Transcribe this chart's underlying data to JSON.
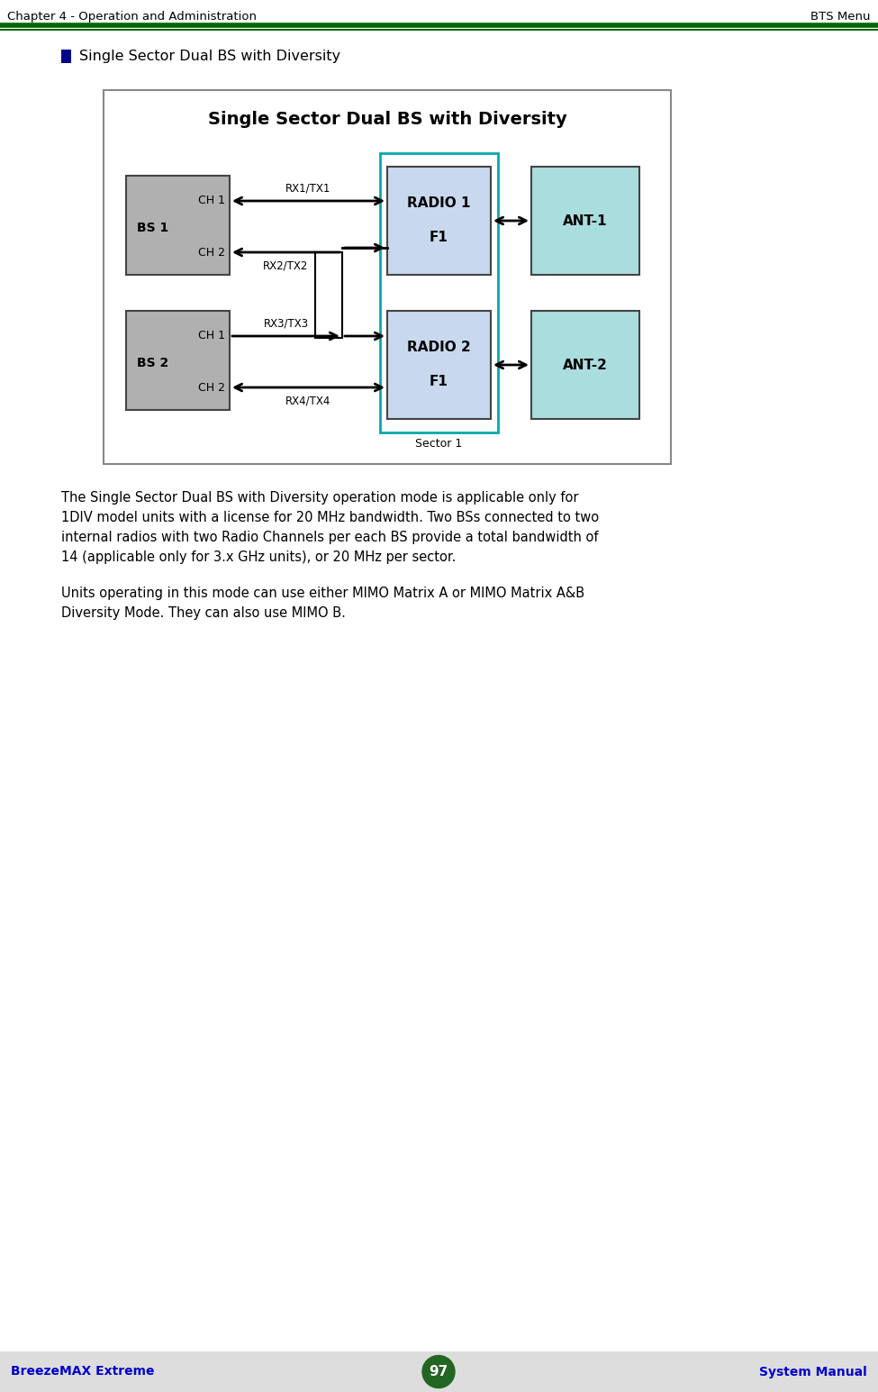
{
  "page_title_left": "Chapter 4 - Operation and Administration",
  "page_title_right": "BTS Menu",
  "header_line_color1": "#007700",
  "header_line_color2": "#009900",
  "bullet_text": "Single Sector Dual BS with Diversity",
  "bullet_color": "#00008B",
  "diagram_title": "Single Sector Dual BS with Diversity",
  "diagram_bg": "#ffffff",
  "diagram_border": "#aaaaaa",
  "box_bs_color": "#b0b0b0",
  "box_radio_color": "#c8d8ee",
  "box_ant_color": "#aadddd",
  "box_sector_outline": "#00aaaa",
  "para1_lines": [
    "The Single Sector Dual BS with Diversity operation mode is applicable only for",
    "1DIV model units with a license for 20 MHz bandwidth. Two BSs connected to two",
    "internal radios with two Radio Channels per each BS provide a total bandwidth of",
    "14 (applicable only for 3.x GHz units), or 20 MHz per sector."
  ],
  "para2_lines": [
    "Units operating in this mode can use either MIMO Matrix A or MIMO Matrix A&B",
    "Diversity Mode. They can also use MIMO B."
  ],
  "footer_left": "BreezeMAX Extreme",
  "footer_right": "System Manual",
  "footer_page": "97",
  "footer_color": "#0000cc",
  "footer_bg": "#dddddd",
  "footer_circle_color": "#226622"
}
